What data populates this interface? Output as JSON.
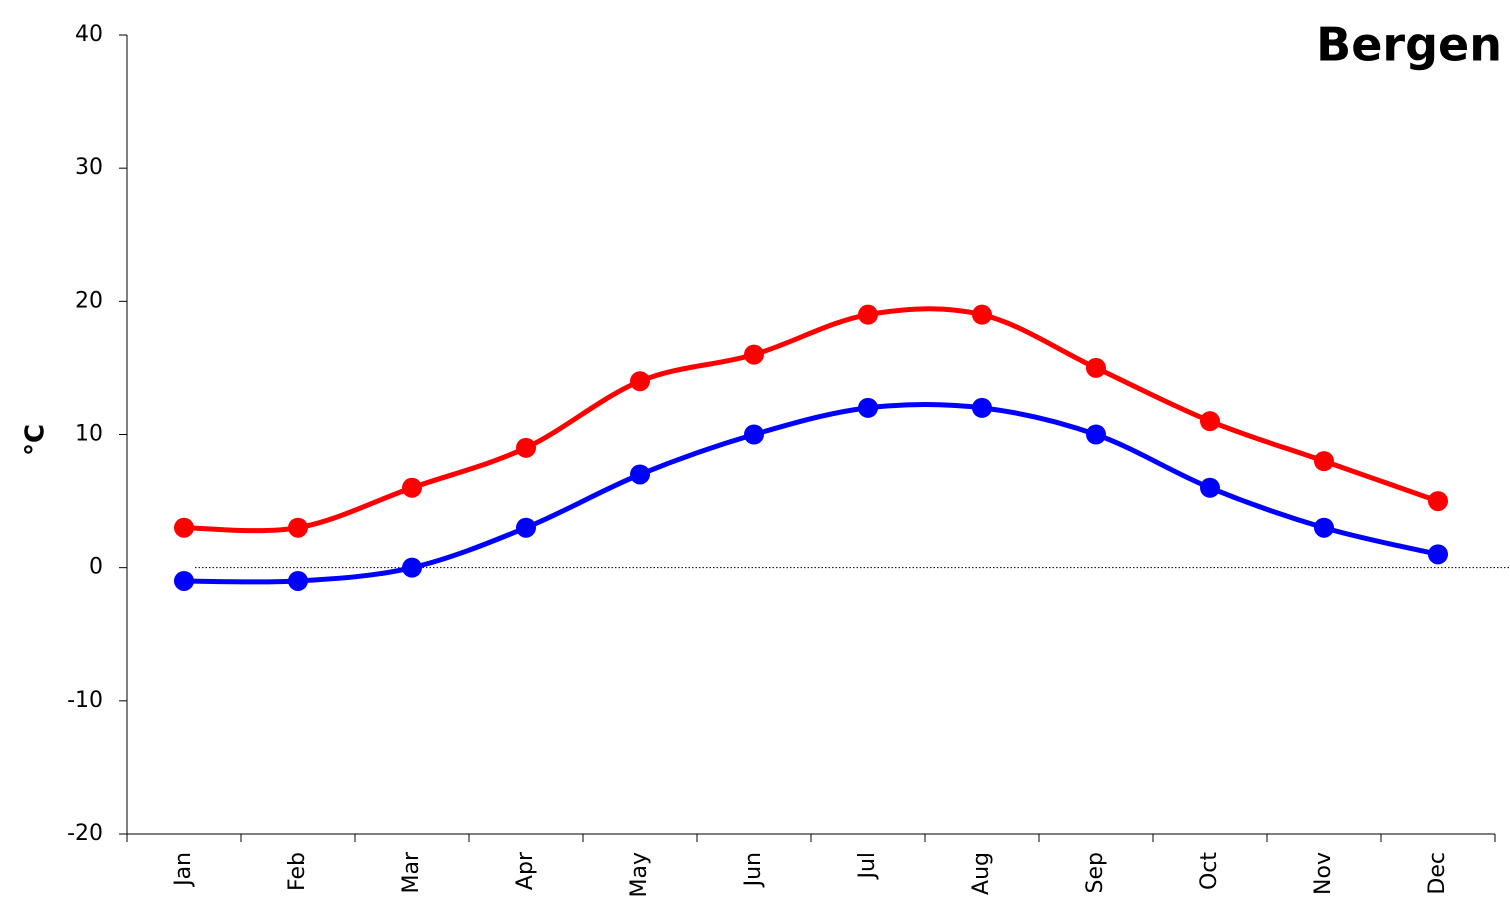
{
  "chart_data": {
    "type": "line",
    "title": "Bergen",
    "y_label": "°C",
    "categories": [
      "Jan",
      "Feb",
      "Mar",
      "Apr",
      "May",
      "Jun",
      "Jul",
      "Aug",
      "Sep",
      "Oct",
      "Nov",
      "Dec"
    ],
    "series": [
      {
        "color": "#ff0000",
        "values": [
          3,
          3,
          6,
          9,
          14,
          16,
          19,
          19,
          15,
          11,
          8,
          5
        ]
      },
      {
        "color": "#0000ff",
        "values": [
          -1,
          -1,
          0,
          3,
          7,
          10,
          12,
          12,
          10,
          6,
          3,
          1
        ]
      }
    ],
    "ylim": [
      -20,
      40
    ],
    "yticks": [
      -20,
      -10,
      0,
      10,
      20,
      30,
      40
    ],
    "zero_line": true,
    "smooth": true
  }
}
